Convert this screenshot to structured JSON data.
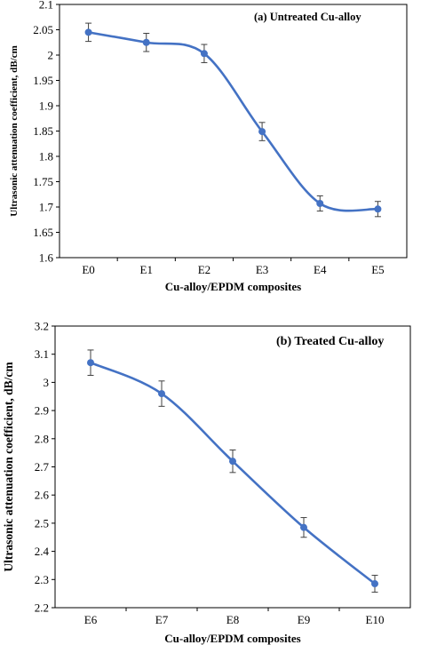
{
  "chart_data": [
    {
      "type": "line",
      "title": "(a) Untreated Cu-alloy",
      "xlabel": "Cu-alloy/EPDM composites",
      "ylabel": "Ultrasonic attenuation coefficient, dB/cm",
      "categories": [
        "E0",
        "E1",
        "E2",
        "E3",
        "E4",
        "E5"
      ],
      "series": [
        {
          "values": [
            2.045,
            2.025,
            2.003,
            1.849,
            1.707,
            1.696
          ],
          "error": [
            0.018,
            0.018,
            0.018,
            0.018,
            0.015,
            0.015
          ]
        }
      ],
      "ylim": [
        1.6,
        2.1
      ],
      "yticks": [
        "1.6",
        "1.65",
        "1.7",
        "1.75",
        "1.8",
        "1.85",
        "1.9",
        "1.95",
        "2",
        "2.05",
        "2.1"
      ],
      "color": "#4472C4",
      "grid": false,
      "smooth": true
    },
    {
      "type": "line",
      "title": "(b) Treated Cu-alloy",
      "xlabel": "Cu-alloy/EPDM composites",
      "ylabel": "Ultrasonic attenuation coefficient, dB/cm",
      "categories": [
        "E6",
        "E7",
        "E8",
        "E9",
        "E10"
      ],
      "series": [
        {
          "values": [
            3.07,
            2.96,
            2.72,
            2.485,
            2.285
          ],
          "error": [
            0.045,
            0.045,
            0.04,
            0.035,
            0.03
          ]
        }
      ],
      "ylim": [
        2.2,
        3.2
      ],
      "yticks": [
        "2.2",
        "2.3",
        "2.4",
        "2.5",
        "2.6",
        "2.7",
        "2.8",
        "2.9",
        "3",
        "3.1",
        "3.2"
      ],
      "color": "#4472C4",
      "grid": false,
      "smooth": true
    }
  ]
}
